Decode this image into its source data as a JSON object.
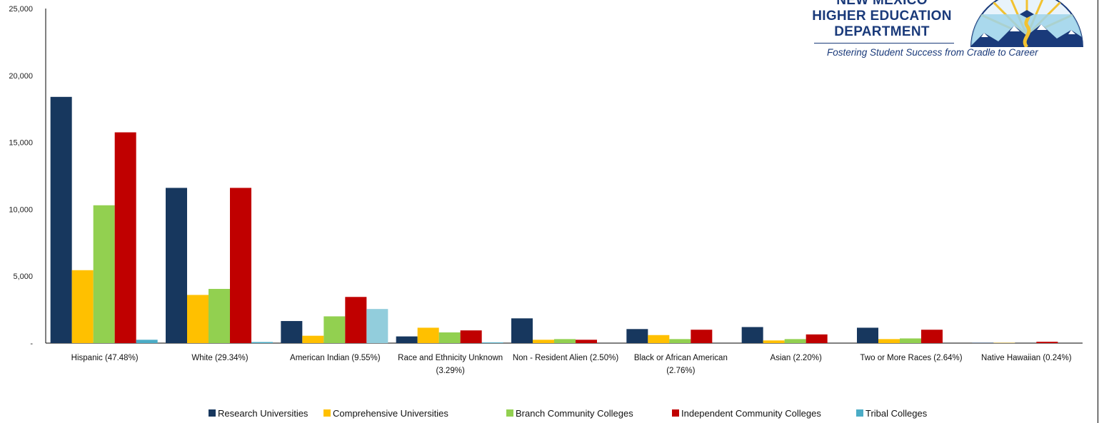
{
  "logo": {
    "line1": "NEW MEXICO",
    "line2": "HIGHER EDUCATION",
    "line3": "DEPARTMENT",
    "tagline": "Fostering Student Success from Cradle to Career",
    "seal_icon": "nm-hed-seal-icon"
  },
  "chart_data": {
    "type": "bar",
    "title": "",
    "xlabel": "",
    "ylabel": "",
    "ylim": [
      0,
      25000
    ],
    "yticks": [
      0,
      5000,
      10000,
      15000,
      20000,
      25000
    ],
    "ytick_labels": [
      "-",
      "5,000",
      "10,000",
      "15,000",
      "20,000",
      "25,000"
    ],
    "grid": false,
    "legend_position": "bottom",
    "categories": [
      [
        "Hispanic (47.48%)"
      ],
      [
        "White (29.34%)"
      ],
      [
        "American Indian (9.55%)"
      ],
      [
        "Race and Ethnicity Unknown",
        "(3.29%)"
      ],
      [
        "Non - Resident Alien (2.50%)"
      ],
      [
        "Black or African American",
        "(2.76%)"
      ],
      [
        "Asian (2.20%)"
      ],
      [
        "Two or More Races (2.64%)"
      ],
      [
        "Native Hawaiian (0.24%)"
      ]
    ],
    "series": [
      {
        "name": "Research Universities",
        "color": "#17375e",
        "values": [
          18400,
          11600,
          1650,
          500,
          1850,
          1050,
          1200,
          1150,
          30
        ]
      },
      {
        "name": "Comprehensive Universities",
        "color": "#ffc000",
        "values": [
          5450,
          3600,
          550,
          1150,
          250,
          600,
          200,
          300,
          20
        ]
      },
      {
        "name": "Branch Community Colleges",
        "color": "#92d050",
        "values": [
          10300,
          4050,
          2000,
          800,
          300,
          300,
          300,
          350,
          0
        ]
      },
      {
        "name": "Independent Community Colleges",
        "color": "#c00000",
        "values": [
          15750,
          11600,
          3450,
          950,
          250,
          1000,
          650,
          1000,
          100
        ]
      },
      {
        "name": "Tribal Colleges",
        "color": "#4bacc6",
        "values": [
          250,
          80,
          2550,
          50,
          0,
          0,
          0,
          0,
          0
        ],
        "highlight_color": "#92cddc"
      }
    ]
  }
}
